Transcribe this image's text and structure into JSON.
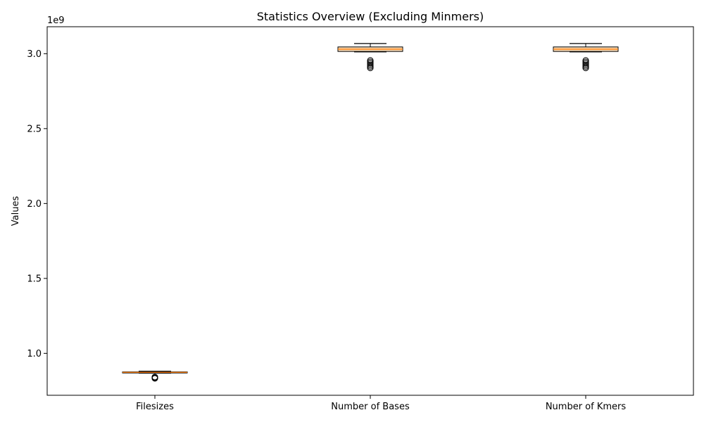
{
  "chart_data": {
    "type": "boxplot",
    "title": "Statistics Overview (Excluding Minmers)",
    "ylabel": "Values",
    "xlabel": "",
    "scale_label": "1e9",
    "ylim": [
      0.72,
      3.18
    ],
    "yticks": [
      1.0,
      1.5,
      2.0,
      2.5,
      3.0
    ],
    "ytick_labels": [
      "1.0",
      "1.5",
      "2.0",
      "2.5",
      "3.0"
    ],
    "grid": false,
    "box_color": "#f6d7b0",
    "median_color": "#ff7f0e",
    "categories": [
      "Filesizes",
      "Number of Bases",
      "Number of Kmers"
    ],
    "boxes": [
      {
        "name": "Filesizes",
        "whislo": 0.868,
        "q1": 0.87,
        "med": 0.873,
        "q3": 0.876,
        "whishi": 0.88,
        "fliers": [
          0.833,
          0.836,
          0.838,
          0.84,
          0.842
        ]
      },
      {
        "name": "Number of Bases",
        "whislo": 3.012,
        "q1": 3.015,
        "med": 3.03,
        "q3": 3.045,
        "whishi": 3.068,
        "fliers": [
          2.905,
          2.915,
          2.925,
          2.935,
          2.945,
          2.955
        ]
      },
      {
        "name": "Number of Kmers",
        "whislo": 3.012,
        "q1": 3.015,
        "med": 3.03,
        "q3": 3.045,
        "whishi": 3.068,
        "fliers": [
          2.905,
          2.915,
          2.925,
          2.935,
          2.945,
          2.955
        ]
      }
    ]
  }
}
